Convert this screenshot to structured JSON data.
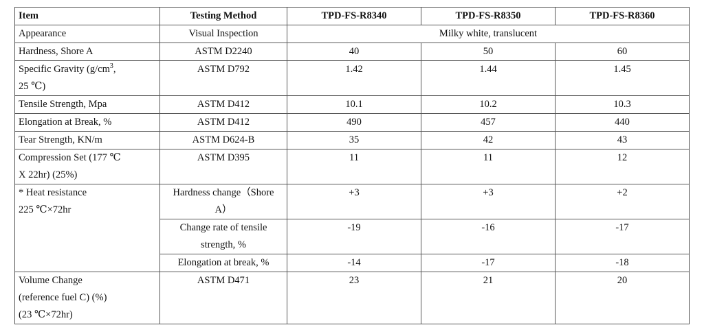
{
  "headers": [
    "Item",
    "Testing Method",
    "TPD-FS-R8340",
    "TPD-FS-R8350",
    "TPD-FS-R8360"
  ],
  "rows": [
    {
      "item": "Appearance",
      "method": "Visual Inspection",
      "merged_value": "Milky white, translucent"
    },
    {
      "item": "Hardness, Shore A",
      "method": "ASTM D2240",
      "values": [
        "40",
        "50",
        "60"
      ]
    },
    {
      "item_lines": [
        "Specific Gravity (g/cm",
        "3",
        ",",
        "25 ℃)"
      ],
      "method": "ASTM D792",
      "values": [
        "1.42",
        "1.44",
        "1.45"
      ]
    },
    {
      "item": "Tensile Strength, Mpa",
      "method": "ASTM D412",
      "values": [
        "10.1",
        "10.2",
        "10.3"
      ]
    },
    {
      "item": "Elongation at Break, %",
      "method": "ASTM D412",
      "values": [
        "490",
        "457",
        "440"
      ]
    },
    {
      "item": "Tear Strength, KN/m",
      "method": "ASTM D624-B",
      "values": [
        "35",
        "42",
        "43"
      ]
    },
    {
      "item_lines": [
        "Compression Set (177 ℃",
        "X 22hr) (25%)"
      ],
      "method": "ASTM D395",
      "values": [
        "11",
        "11",
        "12"
      ]
    }
  ],
  "heat": {
    "item_lines": [
      "* Heat resistance",
      "225 ℃×72hr"
    ],
    "subrows": [
      {
        "method_lines": [
          "Hardness change（Shore",
          "A）"
        ],
        "values": [
          "+3",
          "+3",
          "+2"
        ]
      },
      {
        "method_lines": [
          "Change rate of tensile",
          "strength, %"
        ],
        "values": [
          "-19",
          "-16",
          "-17"
        ]
      },
      {
        "method_lines": [
          "Elongation at break, %"
        ],
        "values": [
          "-14",
          "-17",
          "-18"
        ]
      }
    ]
  },
  "volume": {
    "item_lines": [
      "Volume Change",
      "(reference fuel C) (%)",
      "(23 ℃×72hr)"
    ],
    "method": "ASTM D471",
    "values": [
      "23",
      "21",
      "20"
    ]
  }
}
